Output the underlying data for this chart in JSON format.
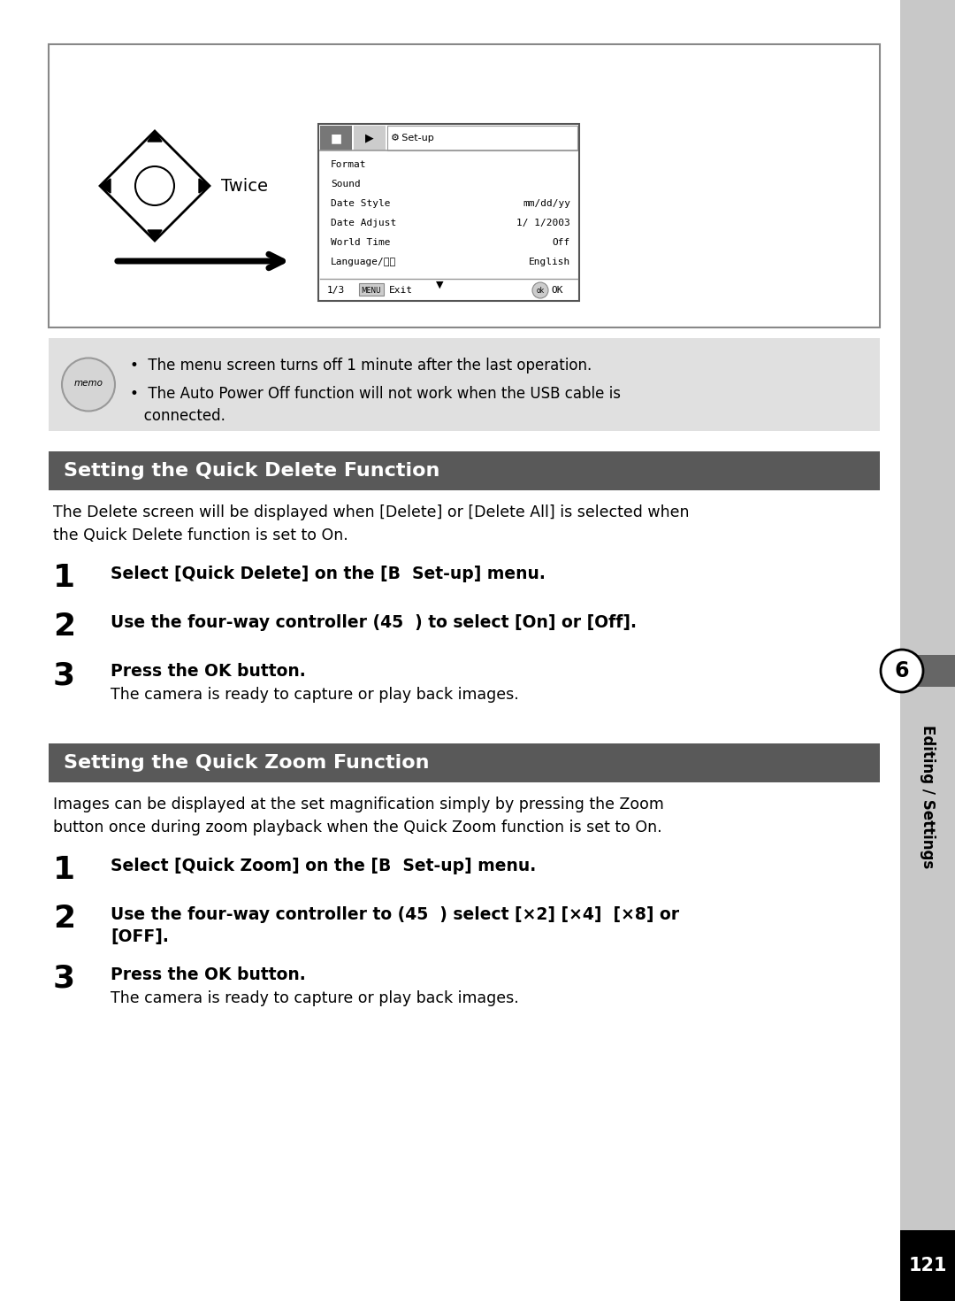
{
  "page_bg": "#ffffff",
  "right_sidebar_color": "#c8c8c8",
  "page_number": "121",
  "chapter_number": "6",
  "chapter_text": "Editing / Settings",
  "section1_title": "Setting the Quick Delete Function",
  "section_header_bg": "#595959",
  "section_header_text": "#ffffff",
  "section1_intro": "The Delete screen will be displayed when [Delete] or [Delete All] is selected when\nthe Quick Delete function is set to On.",
  "section2_title": "Setting the Quick Zoom Function",
  "section2_intro": "Images can be displayed at the set magnification simply by pressing the Zoom\nbutton once during zoom playback when the Quick Zoom function is set to On.",
  "memo_bg": "#e0e0e0",
  "memo_text1": "•  The menu screen turns off 1 minute after the last operation.",
  "memo_text2": "•  The Auto Power Off function will not work when the USB cable is\n   connected.",
  "menu_items": [
    [
      "Format",
      ""
    ],
    [
      "Sound",
      ""
    ],
    [
      "Date Style",
      "mm/dd/yy"
    ],
    [
      "Date Adjust",
      "1/ 1/2003"
    ],
    [
      "World Time",
      "Off"
    ],
    [
      "Language/言語",
      "English"
    ]
  ]
}
